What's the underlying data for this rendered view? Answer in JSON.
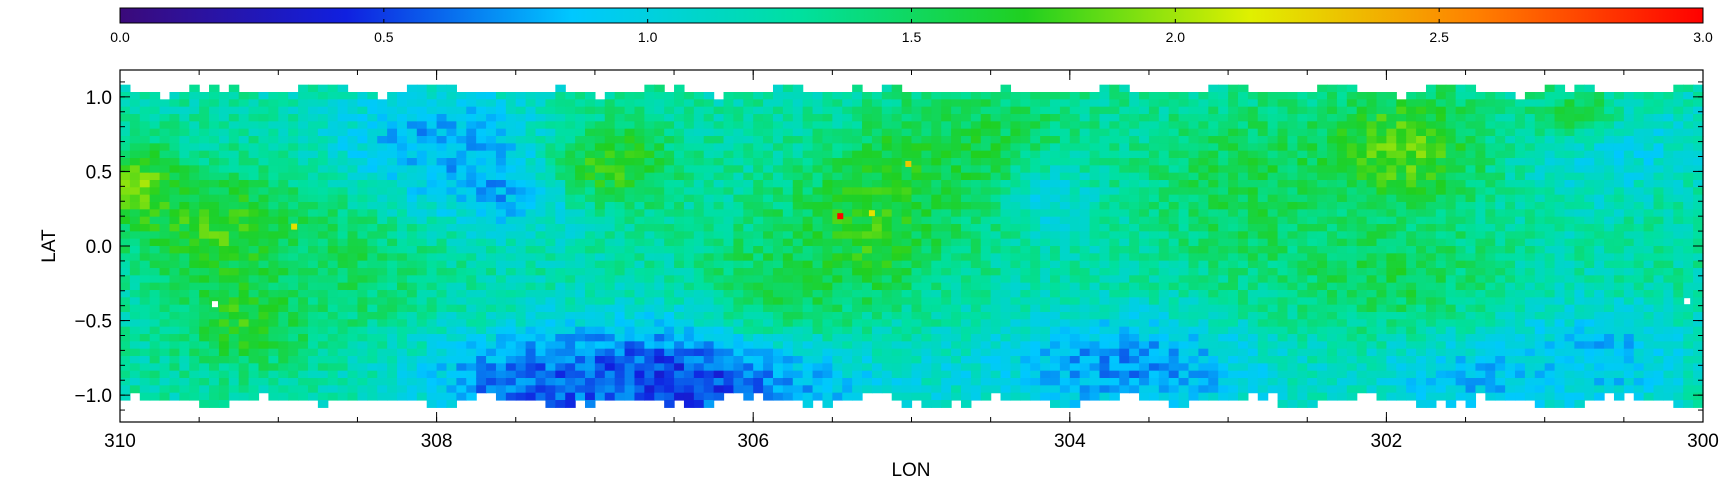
{
  "chart_data": {
    "type": "heatmap",
    "title": "",
    "xlabel": "LON",
    "ylabel": "LAT",
    "xlim": [
      310,
      300
    ],
    "ylim": [
      -1.18,
      1.18
    ],
    "x_ticks": [
      310,
      308,
      306,
      304,
      302,
      300
    ],
    "x_tick_labels": [
      "310",
      "308",
      "306",
      "304",
      "302",
      "300"
    ],
    "y_ticks": [
      1.0,
      0.5,
      0.0,
      -0.5,
      -1.0
    ],
    "y_tick_labels": [
      "1.0",
      "0.5",
      "0.0",
      "−0.5",
      "−1.0"
    ],
    "colorbar": {
      "range": [
        0.0,
        3.0
      ],
      "ticks": [
        0.0,
        0.5,
        1.0,
        1.5,
        2.0,
        2.5,
        3.0
      ],
      "tick_labels": [
        "0.0",
        "0.5",
        "1.0",
        "1.5",
        "2.0",
        "2.5",
        "3.0"
      ],
      "colormap": "rainbow",
      "stops": [
        "#3b0a7a",
        "#1020e0",
        "#00c8ff",
        "#00e0a0",
        "#20d020",
        "#e0f000",
        "#ff8000",
        "#ff0000"
      ]
    },
    "grid": false,
    "blobs": [
      {
        "lon": 309.9,
        "lat": 0.4,
        "value": 1.95,
        "rlon": 0.25,
        "rlat": 0.25
      },
      {
        "lon": 309.3,
        "lat": 0.1,
        "value": 1.8,
        "rlon": 0.6,
        "rlat": 0.4
      },
      {
        "lon": 309.2,
        "lat": -0.5,
        "value": 1.75,
        "rlon": 0.4,
        "rlat": 0.3
      },
      {
        "lon": 308.6,
        "lat": -0.1,
        "value": 1.5,
        "rlon": 0.6,
        "rlat": 0.5
      },
      {
        "lon": 308.0,
        "lat": 0.7,
        "value": 0.8,
        "rlon": 0.7,
        "rlat": 0.4
      },
      {
        "lon": 307.5,
        "lat": 0.4,
        "value": 0.75,
        "rlon": 0.5,
        "rlat": 0.3
      },
      {
        "lon": 306.9,
        "lat": 0.55,
        "value": 1.75,
        "rlon": 0.4,
        "rlat": 0.3
      },
      {
        "lon": 306.5,
        "lat": -0.9,
        "value": 0.45,
        "rlon": 1.2,
        "rlat": 0.4
      },
      {
        "lon": 307.3,
        "lat": -0.95,
        "value": 0.6,
        "rlon": 0.7,
        "rlat": 0.3
      },
      {
        "lon": 305.3,
        "lat": 0.1,
        "value": 1.75,
        "rlon": 0.5,
        "rlat": 0.5
      },
      {
        "lon": 305.0,
        "lat": 0.55,
        "value": 1.7,
        "rlon": 0.3,
        "rlat": 0.3
      },
      {
        "lon": 305.8,
        "lat": -0.2,
        "value": 1.55,
        "rlon": 0.5,
        "rlat": 0.4
      },
      {
        "lon": 304.5,
        "lat": 0.6,
        "value": 1.6,
        "rlon": 0.6,
        "rlat": 0.5
      },
      {
        "lon": 304.1,
        "lat": 0.3,
        "value": 1.0,
        "rlon": 0.3,
        "rlat": 0.3
      },
      {
        "lon": 303.6,
        "lat": -0.8,
        "value": 0.7,
        "rlon": 0.9,
        "rlat": 0.35
      },
      {
        "lon": 302.9,
        "lat": 0.4,
        "value": 1.55,
        "rlon": 0.6,
        "rlat": 0.6
      },
      {
        "lon": 301.9,
        "lat": 0.65,
        "value": 1.85,
        "rlon": 0.5,
        "rlat": 0.4
      },
      {
        "lon": 302.0,
        "lat": -0.2,
        "value": 1.55,
        "rlon": 0.7,
        "rlat": 0.4
      },
      {
        "lon": 301.4,
        "lat": -0.9,
        "value": 0.85,
        "rlon": 0.7,
        "rlat": 0.3
      },
      {
        "lon": 300.6,
        "lat": -0.7,
        "value": 0.85,
        "rlon": 0.5,
        "rlat": 0.4
      },
      {
        "lon": 300.5,
        "lat": 0.6,
        "value": 0.95,
        "rlon": 0.5,
        "rlat": 0.4
      },
      {
        "lon": 300.8,
        "lat": 0.9,
        "value": 1.55,
        "rlon": 0.3,
        "rlat": 0.2
      },
      {
        "lon": 300.3,
        "lat": 0.0,
        "value": 1.3,
        "rlon": 0.4,
        "rlat": 0.4
      }
    ],
    "hotspots": [
      {
        "lon": 305.45,
        "lat": 0.2,
        "value": 3.0
      },
      {
        "lon": 305.25,
        "lat": 0.22,
        "value": 2.2
      },
      {
        "lon": 308.9,
        "lat": 0.13,
        "value": 2.2
      },
      {
        "lon": 305.02,
        "lat": 0.55,
        "value": 2.3
      }
    ],
    "blank_pixels": [
      {
        "lon": 309.4,
        "lat": -0.39
      },
      {
        "lon": 300.1,
        "lat": -0.37
      }
    ]
  }
}
